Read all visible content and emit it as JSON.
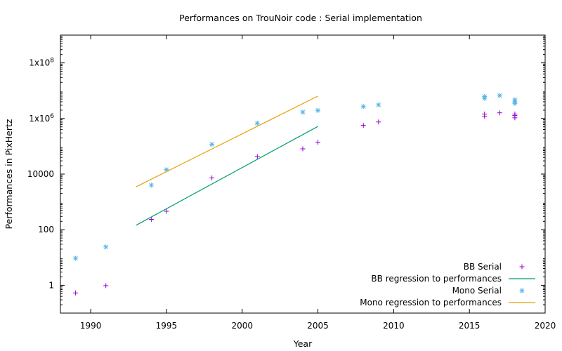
{
  "chart_data": {
    "type": "scatter",
    "title": "Performances on TrouNoir code : Serial implementation",
    "xlabel": "Year",
    "ylabel": "Performances in PixHertz",
    "xlim": [
      1988,
      2020
    ],
    "ylim_log10": [
      -1,
      9
    ],
    "y_scale": "log",
    "grid": false,
    "legend_position": "bottom-right",
    "x_ticks": [
      {
        "value": 1990,
        "label": "1990"
      },
      {
        "value": 1995,
        "label": "1995"
      },
      {
        "value": 2000,
        "label": "2000"
      },
      {
        "value": 2005,
        "label": "2005"
      },
      {
        "value": 2010,
        "label": "2010"
      },
      {
        "value": 2015,
        "label": "2015"
      },
      {
        "value": 2020,
        "label": "2020"
      }
    ],
    "y_ticks": [
      {
        "value": 1,
        "label": "1",
        "sup": ""
      },
      {
        "value": 100,
        "label": "100",
        "sup": ""
      },
      {
        "value": 10000,
        "label": "10000",
        "sup": ""
      },
      {
        "value": 1000000,
        "label": "1x10",
        "sup": "6"
      },
      {
        "value": 100000000,
        "label": "1x10",
        "sup": "8"
      }
    ],
    "series": [
      {
        "name": "BB Serial",
        "kind": "points",
        "marker": "plus",
        "color": "#9400d3",
        "points": [
          [
            1989,
            0.53
          ],
          [
            1991,
            0.97
          ],
          [
            1994,
            235
          ],
          [
            1995,
            460
          ],
          [
            1998,
            7300
          ],
          [
            2001,
            43000
          ],
          [
            2004,
            81000
          ],
          [
            2005,
            140000
          ],
          [
            2008,
            570000
          ],
          [
            2009,
            750000
          ],
          [
            2016,
            1200000
          ],
          [
            2016,
            1450000
          ],
          [
            2017,
            1600000
          ],
          [
            2018,
            1060000
          ],
          [
            2018,
            1280000
          ],
          [
            2018,
            1450000
          ]
        ]
      },
      {
        "name": "BB regression to performances",
        "kind": "line",
        "color": "#009e73",
        "points": [
          [
            1993,
            145
          ],
          [
            2005,
            520000
          ]
        ]
      },
      {
        "name": "Mono Serial",
        "kind": "points",
        "marker": "star",
        "color": "#56b4e9",
        "points": [
          [
            1989,
            9.4
          ],
          [
            1991,
            24
          ],
          [
            1994,
            4000
          ],
          [
            1995,
            14500
          ],
          [
            1998,
            118000
          ],
          [
            2001,
            680000
          ],
          [
            2004,
            1700000
          ],
          [
            2005,
            1950000
          ],
          [
            2008,
            2700000
          ],
          [
            2009,
            3100000
          ],
          [
            2016,
            5300000
          ],
          [
            2016,
            6200000
          ],
          [
            2017,
            6700000
          ],
          [
            2018,
            3500000
          ],
          [
            2018,
            4000000
          ],
          [
            2018,
            4700000
          ]
        ]
      },
      {
        "name": "Mono regression to performances",
        "kind": "line",
        "color": "#e69f00",
        "points": [
          [
            1993,
            3500
          ],
          [
            2005,
            6400000
          ]
        ]
      }
    ]
  }
}
